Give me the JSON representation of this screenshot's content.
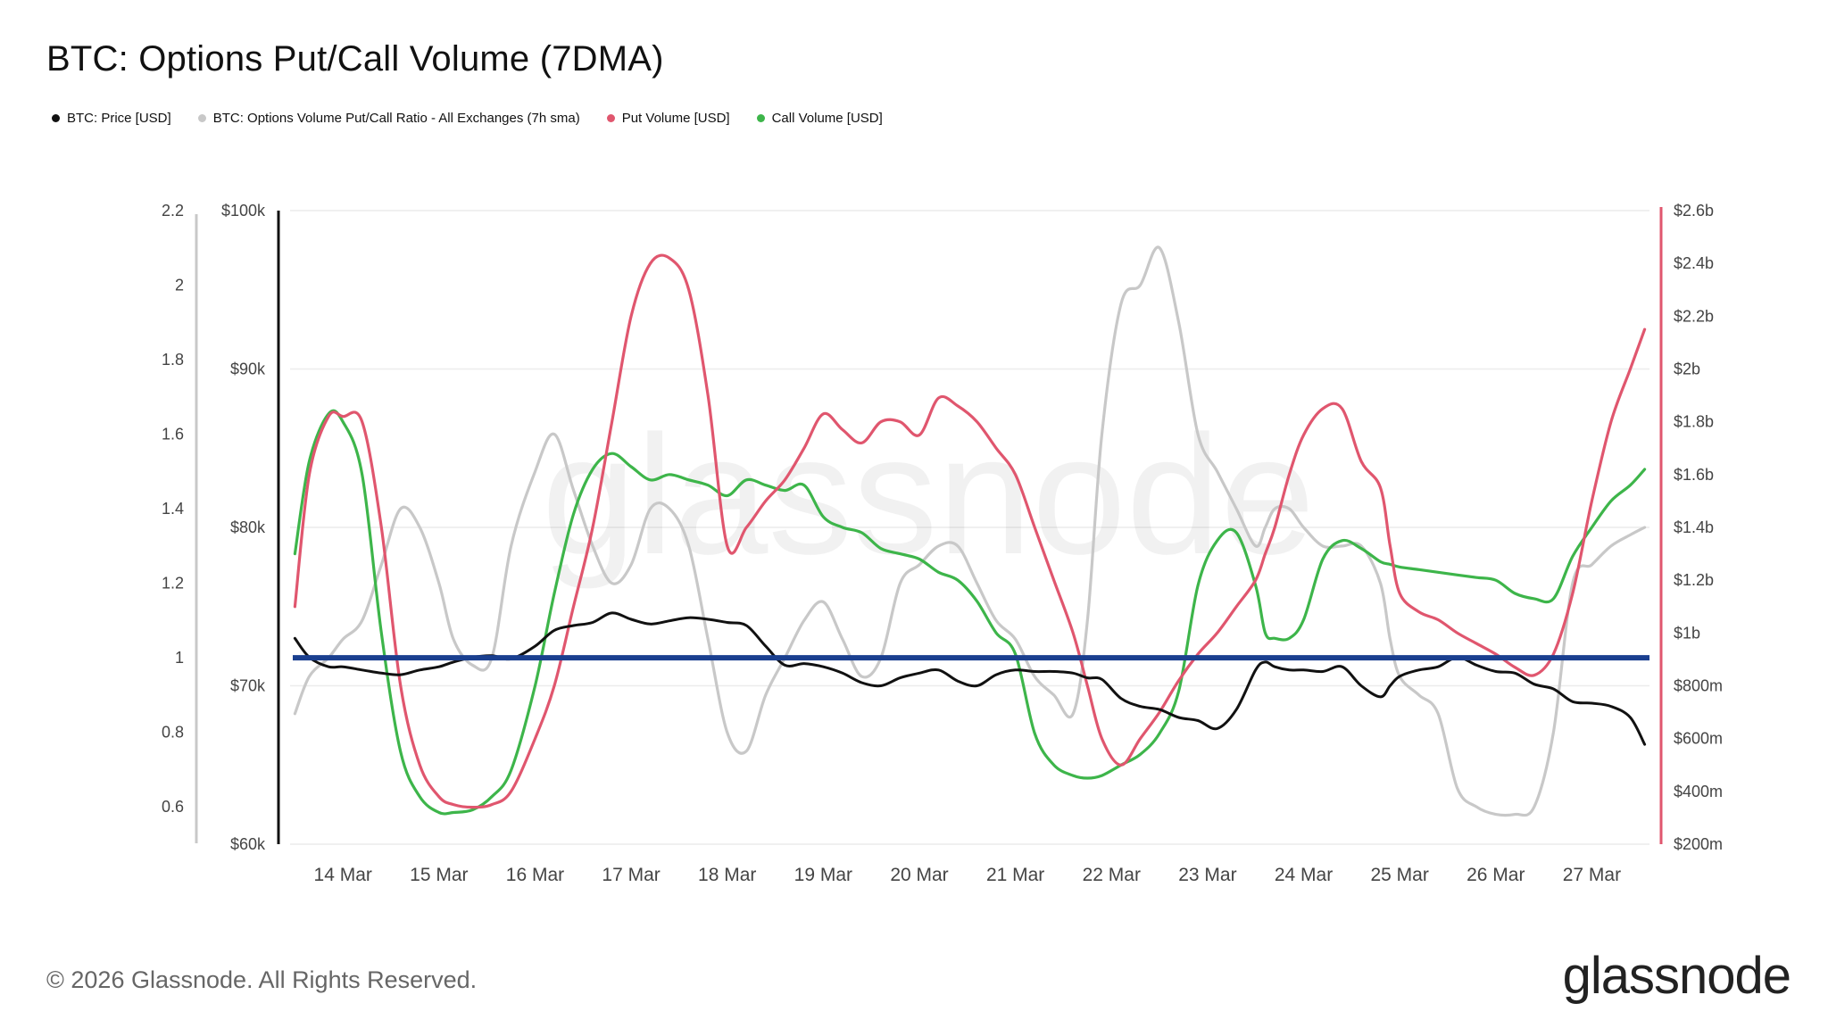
{
  "title": "BTC: Options Put/Call Volume (7DMA)",
  "legend": [
    {
      "label": "BTC: Price [USD]",
      "color": "#111111"
    },
    {
      "label": "BTC: Options Volume Put/Call Ratio - All Exchanges (7h sma)",
      "color": "#c8c8c8"
    },
    {
      "label": "Put Volume [USD]",
      "color": "#e0566e"
    },
    {
      "label": "Call Volume [USD]",
      "color": "#3db54a"
    }
  ],
  "footer": {
    "copyright": "© 2026 Glassnode. All Rights Reserved.",
    "logo": "glassnode"
  },
  "watermark": "glassnode",
  "chart_data": {
    "type": "line",
    "title": "BTC: Options Put/Call Volume (7DMA)",
    "x_labels": [
      "14 Mar",
      "15 Mar",
      "16 Mar",
      "17 Mar",
      "18 Mar",
      "19 Mar",
      "20 Mar",
      "21 Mar",
      "22 Mar",
      "23 Mar",
      "24 Mar",
      "25 Mar",
      "26 Mar",
      "27 Mar"
    ],
    "x_range": [
      13.45,
      27.6
    ],
    "ratio_axis": {
      "ticks": [
        "2.2",
        "2",
        "1.8",
        "1.6",
        "1.4",
        "1.2",
        "1",
        "0.8",
        "0.6"
      ],
      "range": [
        0.5,
        2.2
      ]
    },
    "price_axis": {
      "ticks": [
        "$100k",
        "$90k",
        "$80k",
        "$70k",
        "$60k"
      ],
      "range": [
        60000,
        100000
      ]
    },
    "volume_axis": {
      "ticks": [
        "$2.6b",
        "$2.4b",
        "$2.2b",
        "$2b",
        "$1.8b",
        "$1.6b",
        "$1.4b",
        "$1.2b",
        "$1b",
        "$800m",
        "$600m",
        "$400m",
        "$200m"
      ],
      "range": [
        200,
        2600
      ]
    },
    "reference_line": {
      "axis": "ratio",
      "value": 1.0,
      "color": "#1a3f8f"
    },
    "series": [
      {
        "name": "Call Volume [USD]",
        "axis": "volume",
        "color": "#3db54a",
        "x": [
          13.5,
          13.65,
          13.85,
          14.0,
          14.2,
          14.4,
          14.6,
          14.8,
          15.0,
          15.15,
          15.35,
          15.55,
          15.75,
          16.0,
          16.2,
          16.4,
          16.6,
          16.8,
          17.0,
          17.2,
          17.4,
          17.6,
          17.8,
          18.0,
          18.2,
          18.4,
          18.6,
          18.8,
          19.0,
          19.2,
          19.4,
          19.6,
          19.8,
          20.0,
          20.2,
          20.4,
          20.6,
          20.8,
          21.0,
          21.2,
          21.4,
          21.6,
          21.75,
          21.9,
          22.1,
          22.3,
          22.5,
          22.7,
          22.9,
          23.1,
          23.3,
          23.5,
          23.6,
          23.7,
          23.85,
          24.0,
          24.2,
          24.4,
          24.6,
          24.8,
          24.9,
          25.0,
          25.2,
          25.4,
          25.6,
          25.8,
          26.0,
          26.2,
          26.4,
          26.6,
          26.8,
          27.0,
          27.2,
          27.4,
          27.55
        ],
        "y": [
          1300,
          1650,
          1830,
          1800,
          1600,
          1000,
          550,
          380,
          320,
          320,
          330,
          380,
          480,
          800,
          1150,
          1450,
          1620,
          1680,
          1630,
          1580,
          1600,
          1580,
          1560,
          1520,
          1580,
          1560,
          1540,
          1560,
          1440,
          1400,
          1380,
          1320,
          1300,
          1280,
          1230,
          1200,
          1120,
          1000,
          920,
          620,
          500,
          460,
          450,
          460,
          500,
          540,
          620,
          780,
          1180,
          1350,
          1380,
          1180,
          1000,
          980,
          980,
          1050,
          1280,
          1350,
          1320,
          1270,
          1260,
          1250,
          1240,
          1230,
          1220,
          1210,
          1200,
          1150,
          1130,
          1130,
          1290,
          1400,
          1500,
          1560,
          1620
        ]
      },
      {
        "name": "Put Volume [USD]",
        "axis": "volume",
        "color": "#e0566e",
        "x": [
          13.5,
          13.65,
          13.85,
          14.0,
          14.2,
          14.4,
          14.6,
          14.8,
          15.0,
          15.15,
          15.35,
          15.55,
          15.75,
          16.0,
          16.2,
          16.4,
          16.6,
          16.8,
          17.0,
          17.2,
          17.4,
          17.6,
          17.8,
          18.0,
          18.2,
          18.4,
          18.6,
          18.8,
          19.0,
          19.2,
          19.4,
          19.6,
          19.8,
          20.0,
          20.2,
          20.4,
          20.6,
          20.8,
          21.0,
          21.2,
          21.4,
          21.6,
          21.75,
          21.9,
          22.1,
          22.3,
          22.5,
          22.7,
          22.9,
          23.1,
          23.3,
          23.5,
          23.6,
          23.7,
          23.85,
          24.0,
          24.2,
          24.4,
          24.6,
          24.8,
          24.9,
          25.0,
          25.2,
          25.4,
          25.6,
          25.8,
          26.0,
          26.2,
          26.4,
          26.6,
          26.8,
          27.0,
          27.2,
          27.4,
          27.55
        ],
        "y": [
          1100,
          1600,
          1820,
          1820,
          1800,
          1400,
          800,
          500,
          380,
          350,
          340,
          350,
          400,
          600,
          800,
          1100,
          1400,
          1800,
          2200,
          2400,
          2420,
          2300,
          1900,
          1330,
          1400,
          1500,
          1580,
          1700,
          1830,
          1770,
          1720,
          1800,
          1800,
          1750,
          1890,
          1860,
          1800,
          1700,
          1600,
          1400,
          1200,
          1000,
          800,
          600,
          500,
          600,
          700,
          820,
          920,
          1000,
          1100,
          1200,
          1300,
          1400,
          1600,
          1750,
          1850,
          1850,
          1650,
          1550,
          1330,
          1150,
          1080,
          1050,
          1000,
          960,
          920,
          870,
          840,
          920,
          1150,
          1500,
          1800,
          2000,
          2150
        ]
      },
      {
        "name": "BTC: Options Volume Put/Call Ratio - All Exchanges (7h sma)",
        "axis": "ratio",
        "color": "#c8c8c8",
        "x": [
          13.5,
          13.65,
          13.85,
          14.0,
          14.2,
          14.4,
          14.6,
          14.8,
          15.0,
          15.15,
          15.35,
          15.55,
          15.75,
          16.0,
          16.2,
          16.4,
          16.6,
          16.8,
          17.0,
          17.2,
          17.4,
          17.6,
          17.8,
          18.0,
          18.2,
          18.4,
          18.6,
          18.8,
          19.0,
          19.2,
          19.4,
          19.6,
          19.8,
          20.0,
          20.2,
          20.4,
          20.6,
          20.8,
          21.0,
          21.2,
          21.4,
          21.6,
          21.75,
          21.9,
          22.1,
          22.3,
          22.5,
          22.7,
          22.9,
          23.1,
          23.3,
          23.5,
          23.6,
          23.7,
          23.85,
          24.0,
          24.2,
          24.4,
          24.6,
          24.8,
          24.9,
          25.0,
          25.2,
          25.4,
          25.6,
          25.8,
          26.0,
          26.2,
          26.4,
          26.6,
          26.8,
          27.0,
          27.2,
          27.4,
          27.55
        ],
        "y": [
          0.85,
          0.95,
          1.0,
          1.05,
          1.1,
          1.25,
          1.4,
          1.35,
          1.2,
          1.05,
          0.98,
          1.0,
          1.3,
          1.5,
          1.6,
          1.45,
          1.3,
          1.2,
          1.25,
          1.4,
          1.4,
          1.3,
          1.05,
          0.8,
          0.75,
          0.9,
          1.0,
          1.1,
          1.15,
          1.05,
          0.95,
          1.0,
          1.2,
          1.25,
          1.3,
          1.3,
          1.2,
          1.1,
          1.05,
          0.95,
          0.9,
          0.85,
          1.1,
          1.6,
          1.95,
          2.0,
          2.1,
          1.9,
          1.6,
          1.5,
          1.4,
          1.3,
          1.35,
          1.4,
          1.4,
          1.35,
          1.3,
          1.3,
          1.3,
          1.2,
          1.05,
          0.95,
          0.9,
          0.85,
          0.65,
          0.6,
          0.58,
          0.58,
          0.6,
          0.8,
          1.2,
          1.25,
          1.3,
          1.33,
          1.35
        ]
      },
      {
        "name": "BTC: Price [USD]",
        "axis": "price",
        "color": "#111111",
        "x": [
          13.5,
          13.65,
          13.85,
          14.0,
          14.2,
          14.4,
          14.6,
          14.8,
          15.0,
          15.15,
          15.35,
          15.55,
          15.75,
          16.0,
          16.2,
          16.4,
          16.6,
          16.8,
          17.0,
          17.2,
          17.4,
          17.6,
          17.8,
          18.0,
          18.2,
          18.4,
          18.6,
          18.8,
          19.0,
          19.2,
          19.4,
          19.6,
          19.8,
          20.0,
          20.2,
          20.4,
          20.6,
          20.8,
          21.0,
          21.2,
          21.4,
          21.6,
          21.75,
          21.9,
          22.1,
          22.3,
          22.5,
          22.7,
          22.9,
          23.1,
          23.3,
          23.5,
          23.6,
          23.7,
          23.85,
          24.0,
          24.2,
          24.4,
          24.6,
          24.8,
          24.9,
          25.0,
          25.2,
          25.4,
          25.6,
          25.8,
          26.0,
          26.2,
          26.4,
          26.6,
          26.8,
          27.0,
          27.2,
          27.4,
          27.55
        ],
        "y": [
          73000,
          71800,
          71200,
          71200,
          71000,
          70800,
          70700,
          71000,
          71200,
          71500,
          71800,
          71900,
          71700,
          72500,
          73500,
          73800,
          74000,
          74600,
          74200,
          73900,
          74100,
          74300,
          74200,
          74000,
          73800,
          72500,
          71300,
          71400,
          71200,
          70800,
          70200,
          70000,
          70500,
          70800,
          71000,
          70300,
          70000,
          70700,
          71000,
          70900,
          70900,
          70800,
          70500,
          70400,
          69200,
          68700,
          68500,
          68000,
          67800,
          67300,
          68500,
          71000,
          71500,
          71200,
          71000,
          71000,
          70900,
          71200,
          70000,
          69300,
          70000,
          70600,
          71000,
          71200,
          71800,
          71300,
          70900,
          70800,
          70100,
          69800,
          69000,
          68900,
          68700,
          68000,
          66300
        ]
      }
    ]
  }
}
